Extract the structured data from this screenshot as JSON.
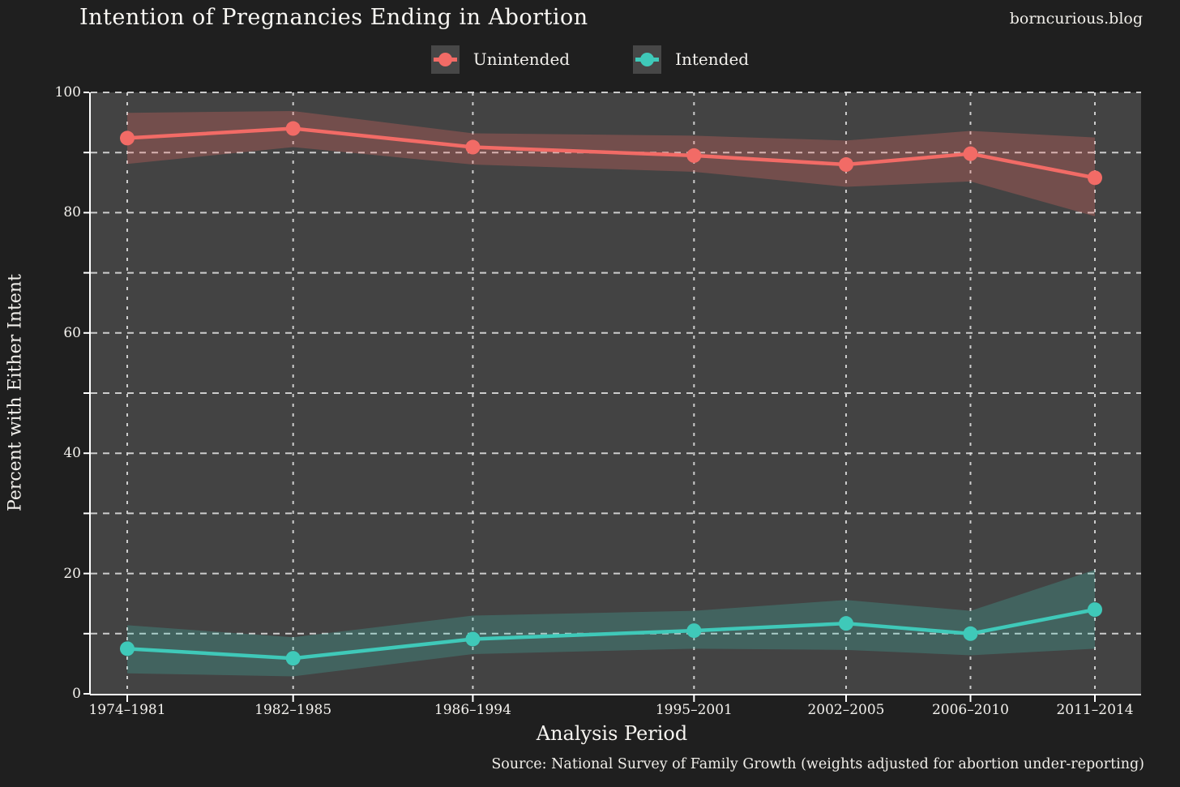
{
  "header": {
    "title": "Intention of Pregnancies Ending in Abortion",
    "watermark": "borncurious.blog"
  },
  "legend": {
    "position": "top-center",
    "items": [
      {
        "label": "Unintended",
        "color": "#F26B66",
        "key_icon": "line-point-key-icon"
      },
      {
        "label": "Intended",
        "color": "#3FC9B9",
        "key_icon": "line-point-key-icon"
      }
    ]
  },
  "chart_data": {
    "type": "line",
    "title": "Intention of Pregnancies Ending in Abortion",
    "xlabel": "Analysis Period",
    "ylabel": "Percent with Either Intent",
    "categories": [
      "1974–1981",
      "1982–1985",
      "1986–1994",
      "1995–2001",
      "2002–2005",
      "2006–2010",
      "2011–2014"
    ],
    "category_mid_years": [
      1977.5,
      1983.5,
      1990,
      1998,
      2003.5,
      2008,
      2012.5
    ],
    "series": [
      {
        "name": "Unintended",
        "color": "#F26B66",
        "band_opacity": 0.28,
        "values": [
          92.4,
          94.0,
          90.9,
          89.5,
          88.0,
          89.8,
          85.8
        ],
        "band_low": [
          88.1,
          90.9,
          88.0,
          86.8,
          84.3,
          85.2,
          79.4
        ],
        "band_high": [
          96.6,
          96.9,
          93.2,
          92.8,
          92.0,
          93.6,
          92.5
        ]
      },
      {
        "name": "Intended",
        "color": "#3FC9B9",
        "band_opacity": 0.24,
        "values": [
          7.5,
          5.9,
          9.1,
          10.5,
          11.7,
          10.0,
          14.0
        ],
        "band_low": [
          3.4,
          2.9,
          6.6,
          7.5,
          7.3,
          6.4,
          7.5
        ],
        "band_high": [
          11.4,
          9.4,
          13.0,
          13.8,
          15.6,
          13.8,
          20.6
        ]
      }
    ],
    "ylim": [
      0,
      100
    ],
    "yticks": [
      0,
      20,
      40,
      60,
      80,
      100
    ],
    "grid_step": 10,
    "grid": "dashed horizontal every 10, dashed vertical at each category",
    "legend_position": "top"
  },
  "footer": {
    "source": "Source: National Survey of Family Growth (weights adjusted for abortion under-reporting)"
  },
  "colors": {
    "page_bg": "#1F1F1F",
    "panel_bg": "#434343",
    "gridline": "#D9D9D9",
    "axis": "#FFFFFF",
    "text": "#F3F1ED",
    "legend_key_bg": "#474747",
    "unintended": "#F26B66",
    "intended": "#3FC9B9"
  }
}
